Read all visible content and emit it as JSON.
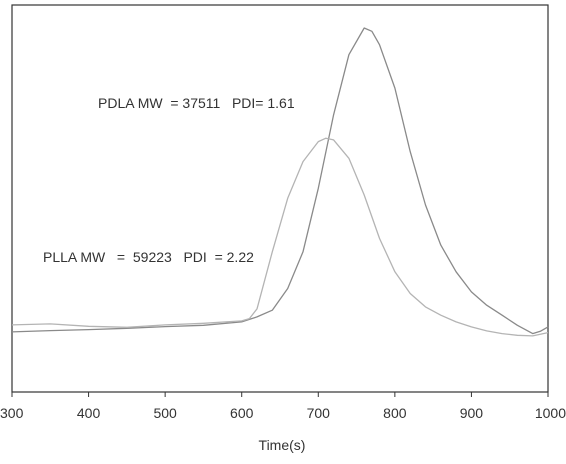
{
  "chart_data": {
    "type": "line",
    "title": "",
    "xlabel": "Time(s)",
    "ylabel": "",
    "xlim": [
      300,
      1000
    ],
    "xticks": [
      300,
      400,
      500,
      600,
      700,
      800,
      900,
      1000
    ],
    "ylim": [
      0,
      1
    ],
    "yticks_shown": false,
    "grid": false,
    "annotations": [
      {
        "text": "PDLA MW  = 37511   PDI= 1.61",
        "series": "PDLA"
      },
      {
        "text": "PLLA MW   =  59223   PDI  = 2.22",
        "series": "PLLA"
      }
    ],
    "series": [
      {
        "name": "",
        "x": [
          300,
          350,
          400,
          450,
          500,
          550,
          600,
          620,
          640,
          660,
          680,
          700,
          720,
          740,
          760,
          770,
          780,
          800,
          820,
          840,
          860,
          880,
          900,
          920,
          940,
          960,
          980,
          990,
          1000
        ],
        "y": [
          0.09,
          0.094,
          0.097,
          0.101,
          0.106,
          0.11,
          0.12,
          0.135,
          0.155,
          0.22,
          0.33,
          0.52,
          0.74,
          0.92,
          1.0,
          0.99,
          0.95,
          0.82,
          0.63,
          0.47,
          0.35,
          0.27,
          0.21,
          0.17,
          0.14,
          0.11,
          0.085,
          0.092,
          0.105
        ],
        "color": "#8a8a8a"
      },
      {
        "name": "",
        "x": [
          300,
          350,
          400,
          450,
          500,
          550,
          600,
          610,
          620,
          640,
          660,
          680,
          700,
          710,
          720,
          740,
          760,
          780,
          800,
          820,
          840,
          860,
          880,
          900,
          920,
          940,
          960,
          980,
          1000
        ],
        "y": [
          0.111,
          0.114,
          0.107,
          0.104,
          0.111,
          0.116,
          0.123,
          0.13,
          0.159,
          0.33,
          0.49,
          0.6,
          0.66,
          0.67,
          0.665,
          0.61,
          0.5,
          0.37,
          0.27,
          0.205,
          0.165,
          0.14,
          0.12,
          0.105,
          0.093,
          0.085,
          0.08,
          0.078,
          0.088
        ],
        "color": "#b4b4b4"
      }
    ]
  }
}
